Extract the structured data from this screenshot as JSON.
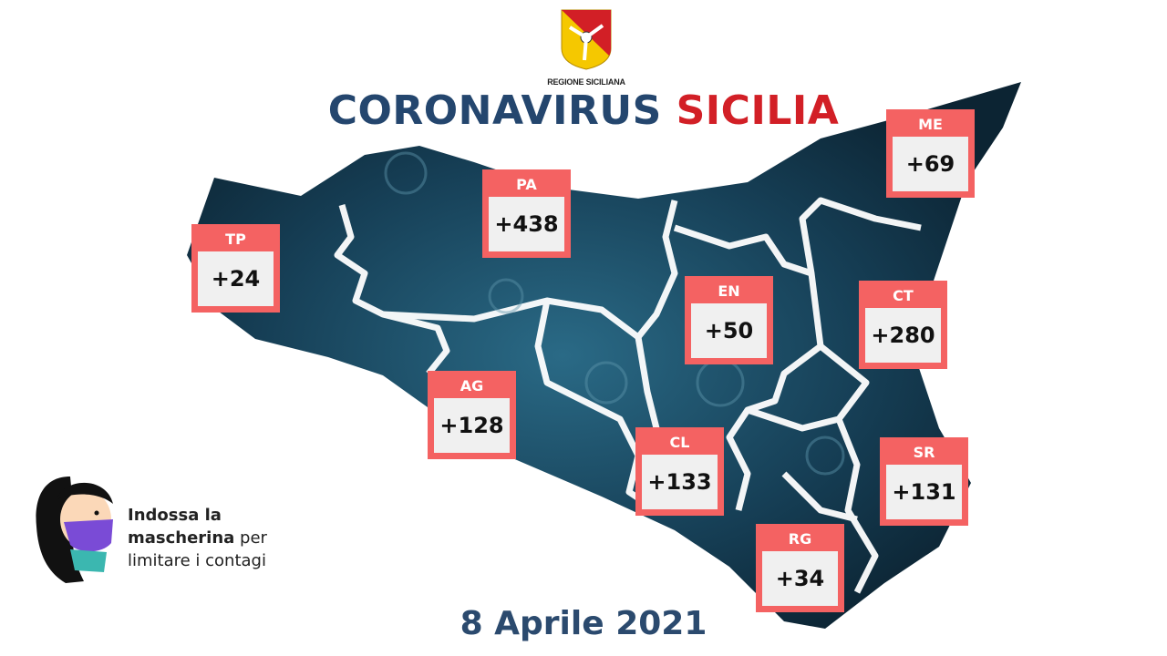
{
  "logo": {
    "caption": "REGIONE SICILIANA",
    "colors": {
      "red": "#d21f26",
      "yellow": "#f5c800"
    }
  },
  "title": {
    "part1": "CORONAVIRUS",
    "part2": "SICILIA"
  },
  "colors": {
    "badge": "#f46262",
    "badge_inner": "#f0f0f0",
    "map": "#163f56",
    "title_blue": "#24466e",
    "title_red": "#d21f26"
  },
  "provinces": [
    {
      "code": "TP",
      "value": "+24"
    },
    {
      "code": "PA",
      "value": "+438"
    },
    {
      "code": "ME",
      "value": "+69"
    },
    {
      "code": "EN",
      "value": "+50"
    },
    {
      "code": "CT",
      "value": "+280"
    },
    {
      "code": "AG",
      "value": "+128"
    },
    {
      "code": "CL",
      "value": "+133"
    },
    {
      "code": "SR",
      "value": "+131"
    },
    {
      "code": "RG",
      "value": "+34"
    }
  ],
  "message": {
    "line1_bold": "Indossa la",
    "line2_bold": "mascherina",
    "line2_rest": " per",
    "line3": "limitare i contagi"
  },
  "date": "8 Aprile 2021"
}
